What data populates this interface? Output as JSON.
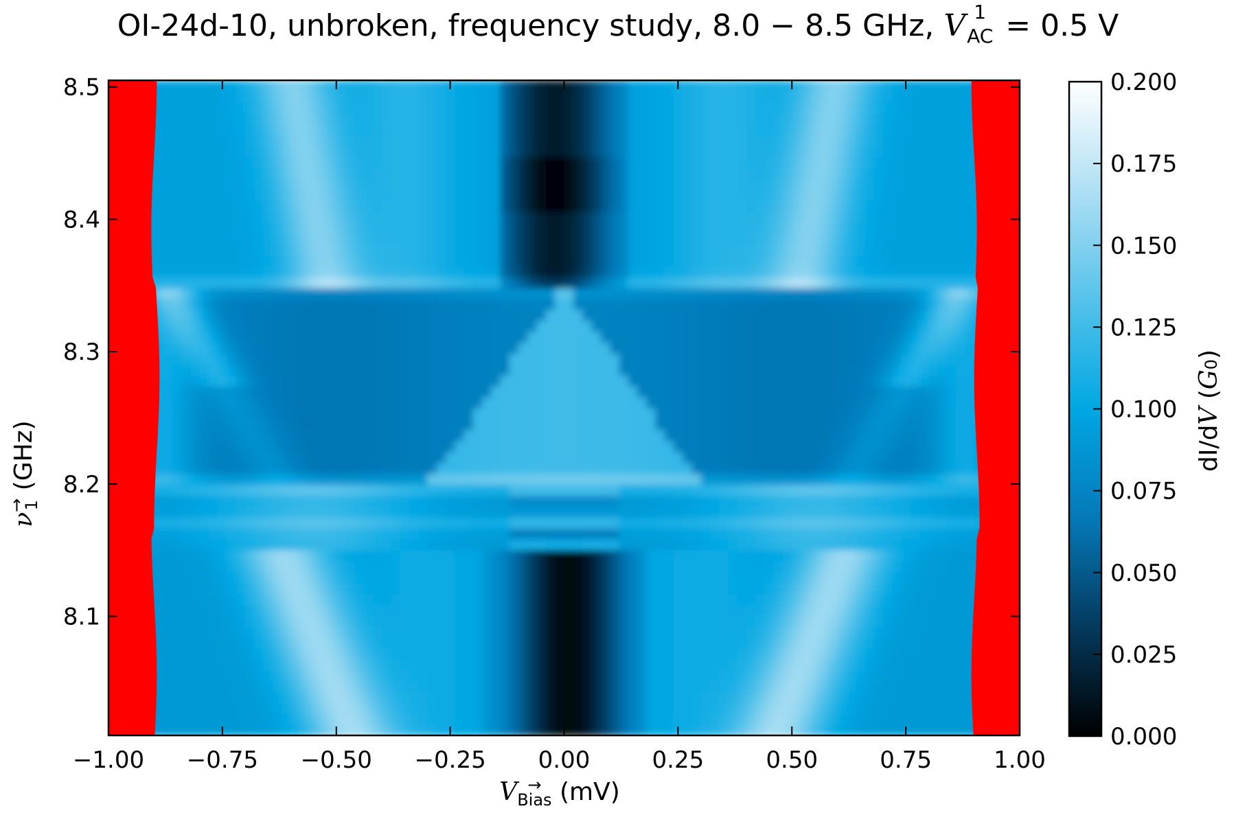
{
  "chart_data": {
    "type": "heatmap",
    "title": {
      "prefix": "OI-24d-10, unbroken, frequency study, 8.0 − 8.5 GHz, ",
      "var": "V",
      "var_sup": "1",
      "var_sub": "AC",
      "suffix": " = 0.5 V"
    },
    "xlabel": {
      "var": "V",
      "sup": "→",
      "sub": "Bias",
      "unit": " (mV)"
    },
    "ylabel": {
      "var": "ν",
      "sup": "→",
      "sub": "1",
      "unit": " (GHz)"
    },
    "colorbar_label": {
      "prefix": "dI/d",
      "var": "V",
      "mid": " (",
      "var2": "G",
      "sub": "0",
      "suffix": ")"
    },
    "xlim": [
      -1.0,
      1.0
    ],
    "ylim": [
      8.01,
      8.505
    ],
    "clim": [
      0.0,
      0.2
    ],
    "x_ticks": [
      "−1.00",
      "−0.75",
      "−0.50",
      "−0.25",
      "0.00",
      "0.25",
      "0.50",
      "0.75",
      "1.00"
    ],
    "x_tick_values": [
      -1.0,
      -0.75,
      -0.5,
      -0.25,
      0.0,
      0.25,
      0.5,
      0.75,
      1.0
    ],
    "y_ticks": [
      "8.1",
      "8.2",
      "8.3",
      "8.4",
      "8.5"
    ],
    "y_tick_values": [
      8.1,
      8.2,
      8.3,
      8.4,
      8.5
    ],
    "colorbar_ticks": [
      "0.000",
      "0.025",
      "0.050",
      "0.075",
      "0.100",
      "0.125",
      "0.150",
      "0.175",
      "0.200"
    ],
    "colorbar_tick_values": [
      0.0,
      0.025,
      0.05,
      0.075,
      0.1,
      0.125,
      0.15,
      0.175,
      0.2
    ],
    "colormap": [
      "#000000",
      "#053a5e",
      "#0579b8",
      "#00a7e3",
      "#56c2ea",
      "#aedff4",
      "#ffffff"
    ],
    "out_of_range_color": "#ff0000",
    "grid": false,
    "ticks_direction": "in",
    "features": {
      "bias_edges_mV": [
        -0.9,
        0.9
      ],
      "dark_zero_bias_dips_GHz": [
        [
          8.355,
          8.505
        ],
        [
          8.01,
          8.145
        ]
      ],
      "bright_triangle_GHz": [
        8.195,
        8.345
      ],
      "horizontal_bands_GHz": [
        8.2,
        8.35,
        8.17
      ]
    }
  }
}
